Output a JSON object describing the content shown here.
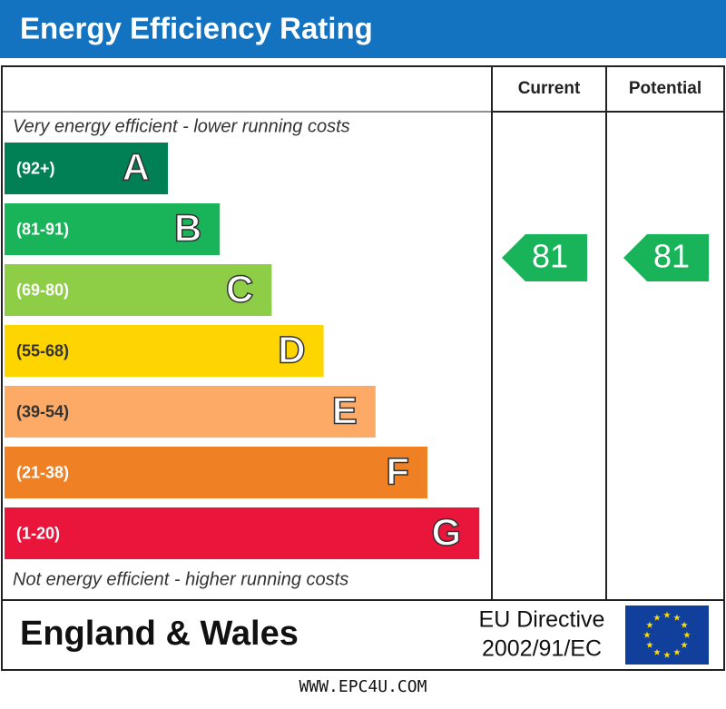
{
  "header": {
    "title": "Energy Efficiency Rating"
  },
  "columns": [
    "Current",
    "Potential"
  ],
  "top_note": "Very energy efficient - lower running costs",
  "bottom_note": "Not energy efficient - higher running costs",
  "bands": [
    {
      "range": "(92+)",
      "letter": "A",
      "color": "#008054"
    },
    {
      "range": "(81-91)",
      "letter": "B",
      "color": "#19b459"
    },
    {
      "range": "(69-80)",
      "letter": "C",
      "color": "#8dce46"
    },
    {
      "range": "(55-68)",
      "letter": "D",
      "color": "#ffd500"
    },
    {
      "range": "(39-54)",
      "letter": "E",
      "color": "#fcaa65"
    },
    {
      "range": "(21-38)",
      "letter": "F",
      "color": "#ef8023"
    },
    {
      "range": "(1-20)",
      "letter": "G",
      "color": "#e9153b"
    }
  ],
  "current": {
    "value": 81
  },
  "potential": {
    "value": 81
  },
  "footer": {
    "region": "England & Wales",
    "directive": [
      "EU Directive",
      "2002/91/EC"
    ]
  },
  "website": "WWW.EPC4U.COM"
}
